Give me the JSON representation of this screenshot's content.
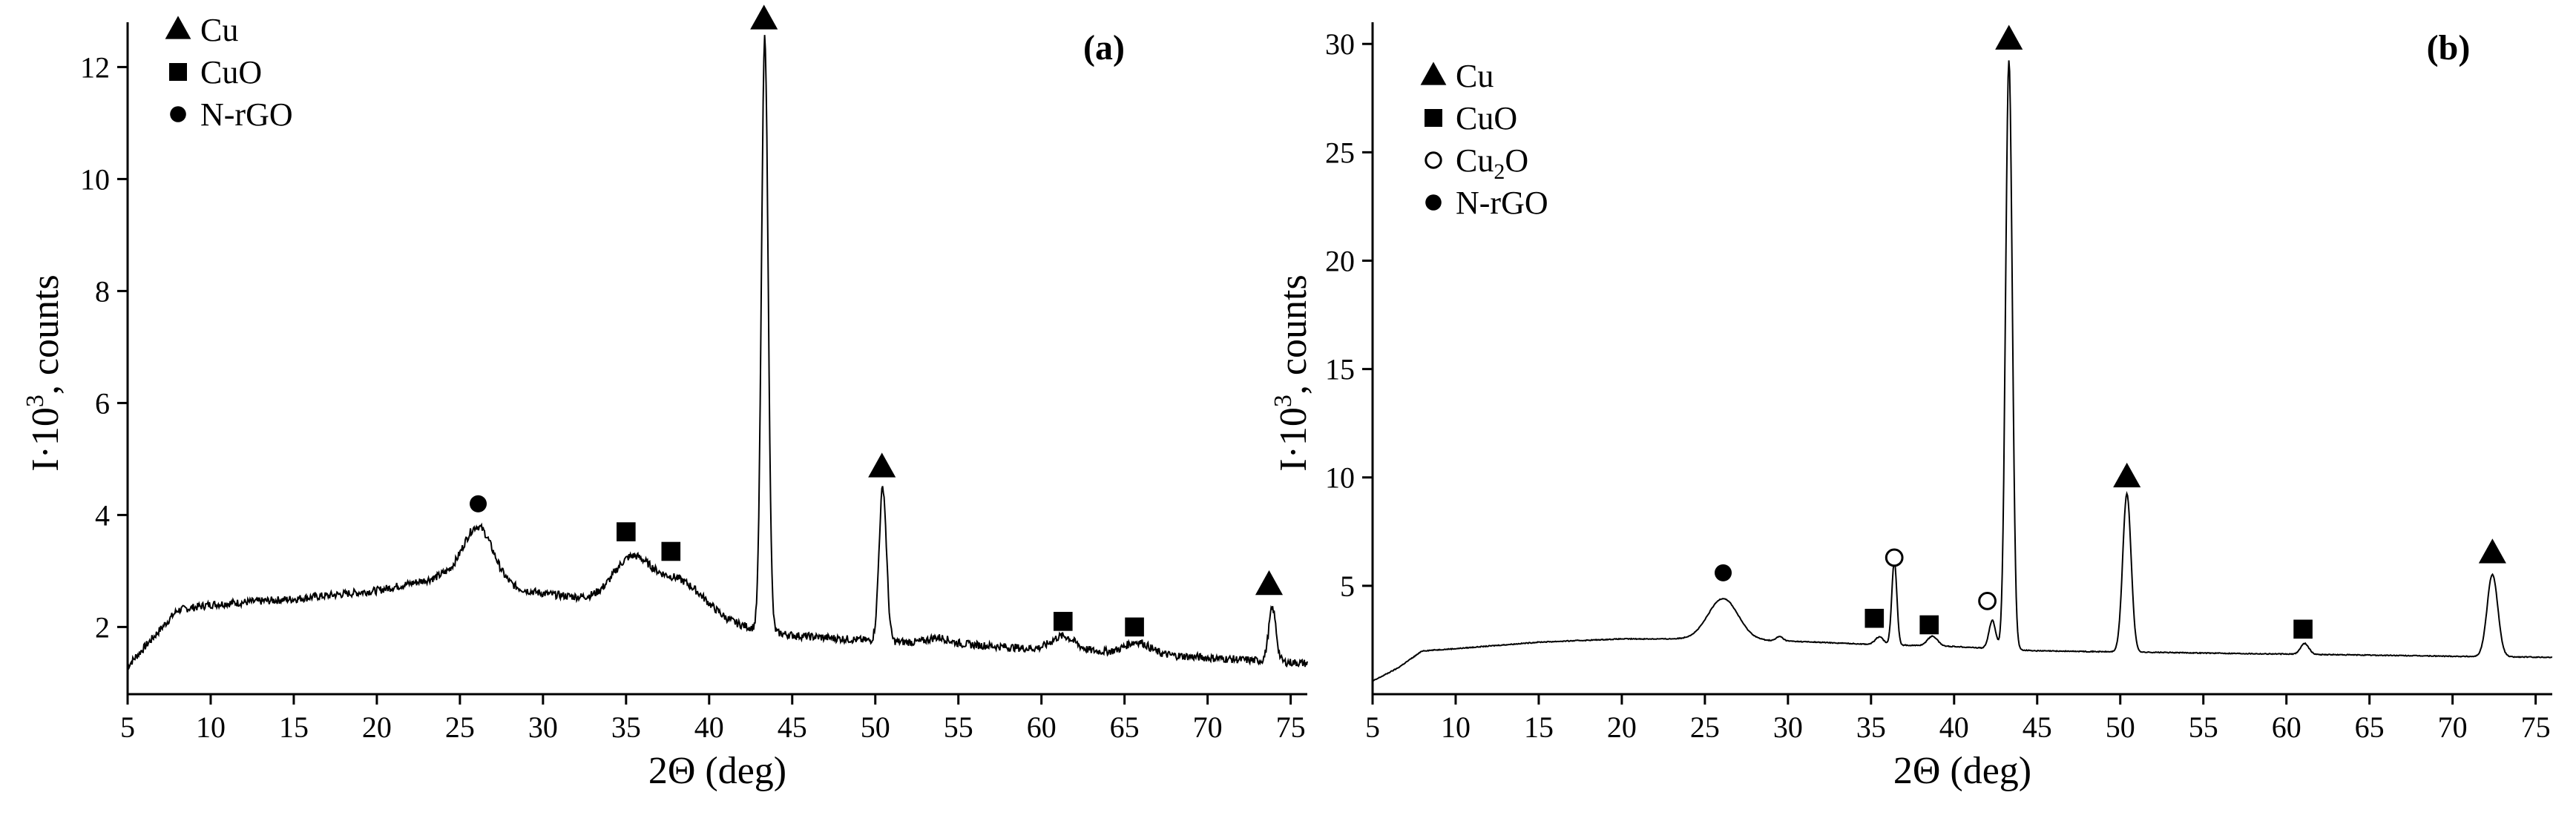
{
  "chart_data": [
    {
      "panel": "(a)",
      "type": "line",
      "xlabel": "2Θ (deg)",
      "ylabel_prefix": "I·10",
      "ylabel_exp": "3",
      "ylabel_suffix": ", counts",
      "xlim": [
        5,
        76
      ],
      "ylim": [
        0.8,
        12.8
      ],
      "xticks": [
        5,
        10,
        15,
        20,
        25,
        30,
        35,
        40,
        45,
        50,
        55,
        60,
        65,
        70,
        75
      ],
      "yticks": [
        2,
        4,
        6,
        8,
        10,
        12
      ],
      "noise": 0.07,
      "baseline": [
        [
          5,
          1.3
        ],
        [
          6.5,
          1.8
        ],
        [
          8,
          2.3
        ],
        [
          10,
          2.4
        ],
        [
          15,
          2.5
        ],
        [
          20,
          2.65
        ],
        [
          24,
          2.9
        ],
        [
          30,
          2.6
        ],
        [
          33,
          2.5
        ],
        [
          38,
          2.3
        ],
        [
          41,
          2.05
        ],
        [
          45,
          1.85
        ],
        [
          50,
          1.75
        ],
        [
          55,
          1.7
        ],
        [
          60,
          1.6
        ],
        [
          65,
          1.55
        ],
        [
          70,
          1.45
        ],
        [
          76,
          1.35
        ]
      ],
      "peaks": [
        {
          "x": 26.1,
          "h": 1.0,
          "w": 0.9
        },
        {
          "x": 35.3,
          "h": 0.75,
          "w": 1.1
        },
        {
          "x": 38.2,
          "h": 0.55,
          "w": 1.6
        },
        {
          "x": 43.35,
          "h": 10.6,
          "w": 0.2
        },
        {
          "x": 50.45,
          "h": 2.75,
          "w": 0.22
        },
        {
          "x": 53.8,
          "h": 0.1,
          "w": 0.6
        },
        {
          "x": 61.3,
          "h": 0.25,
          "w": 0.7
        },
        {
          "x": 65.8,
          "h": 0.2,
          "w": 0.7
        },
        {
          "x": 73.9,
          "h": 0.95,
          "w": 0.22
        }
      ],
      "markers": [
        {
          "x": 26.1,
          "y": 4.2,
          "sym": "circle"
        },
        {
          "x": 35.0,
          "y": 3.7,
          "sym": "square"
        },
        {
          "x": 37.7,
          "y": 3.35,
          "sym": "square"
        },
        {
          "x": 43.3,
          "y": 12.85,
          "sym": "triangle"
        },
        {
          "x": 50.4,
          "y": 4.85,
          "sym": "triangle"
        },
        {
          "x": 61.3,
          "y": 2.1,
          "sym": "square"
        },
        {
          "x": 65.6,
          "y": 2.0,
          "sym": "square"
        },
        {
          "x": 73.7,
          "y": 2.75,
          "sym": "triangle"
        }
      ],
      "legend": [
        {
          "sym": "triangle",
          "label": "Cu"
        },
        {
          "sym": "square",
          "label": "CuO"
        },
        {
          "sym": "circle",
          "label": "N-rGO"
        }
      ]
    },
    {
      "panel": "(b)",
      "type": "line",
      "xlabel": "2Θ (deg)",
      "ylabel_prefix": "I·10",
      "ylabel_exp": "3",
      "ylabel_suffix": ", counts",
      "xlim": [
        5,
        76
      ],
      "ylim": [
        0,
        31
      ],
      "xticks": [
        5,
        10,
        15,
        20,
        25,
        30,
        35,
        40,
        45,
        50,
        55,
        60,
        65,
        70,
        75
      ],
      "yticks": [
        5,
        10,
        15,
        20,
        25,
        30
      ],
      "noise": 0.02,
      "baseline": [
        [
          5,
          0.6
        ],
        [
          6.5,
          1.2
        ],
        [
          8,
          2.0
        ],
        [
          10,
          2.1
        ],
        [
          15,
          2.4
        ],
        [
          20,
          2.55
        ],
        [
          24,
          2.55
        ],
        [
          30,
          2.45
        ],
        [
          35,
          2.3
        ],
        [
          40,
          2.2
        ],
        [
          45,
          2.0
        ],
        [
          50,
          1.95
        ],
        [
          55,
          1.9
        ],
        [
          60,
          1.85
        ],
        [
          65,
          1.8
        ],
        [
          70,
          1.75
        ],
        [
          76,
          1.7
        ]
      ],
      "peaks": [
        {
          "x": 26.1,
          "h": 1.9,
          "w": 0.9
        },
        {
          "x": 29.5,
          "h": 0.2,
          "w": 0.2
        },
        {
          "x": 35.5,
          "h": 0.35,
          "w": 0.25
        },
        {
          "x": 36.4,
          "h": 3.9,
          "w": 0.15
        },
        {
          "x": 38.7,
          "h": 0.45,
          "w": 0.3
        },
        {
          "x": 42.3,
          "h": 1.3,
          "w": 0.2
        },
        {
          "x": 43.3,
          "h": 27.2,
          "w": 0.2
        },
        {
          "x": 50.4,
          "h": 7.3,
          "w": 0.25
        },
        {
          "x": 61.1,
          "h": 0.5,
          "w": 0.25
        },
        {
          "x": 72.4,
          "h": 3.8,
          "w": 0.32
        }
      ],
      "markers": [
        {
          "x": 26.1,
          "y": 5.6,
          "sym": "circle"
        },
        {
          "x": 35.2,
          "y": 3.5,
          "sym": "square"
        },
        {
          "x": 36.4,
          "y": 6.3,
          "sym": "open-circle"
        },
        {
          "x": 38.5,
          "y": 3.2,
          "sym": "square"
        },
        {
          "x": 42.0,
          "y": 4.3,
          "sym": "open-circle"
        },
        {
          "x": 43.3,
          "y": 30.2,
          "sym": "triangle"
        },
        {
          "x": 50.4,
          "y": 10.0,
          "sym": "triangle"
        },
        {
          "x": 61.0,
          "y": 3.0,
          "sym": "square"
        },
        {
          "x": 72.4,
          "y": 6.5,
          "sym": "triangle"
        }
      ],
      "legend": [
        {
          "sym": "triangle",
          "label": "Cu"
        },
        {
          "sym": "square",
          "label": "CuO"
        },
        {
          "sym": "open-circle",
          "label": "Cu",
          "sub": "2",
          "after": "O"
        },
        {
          "sym": "circle",
          "label": "N-rGO"
        }
      ]
    }
  ]
}
